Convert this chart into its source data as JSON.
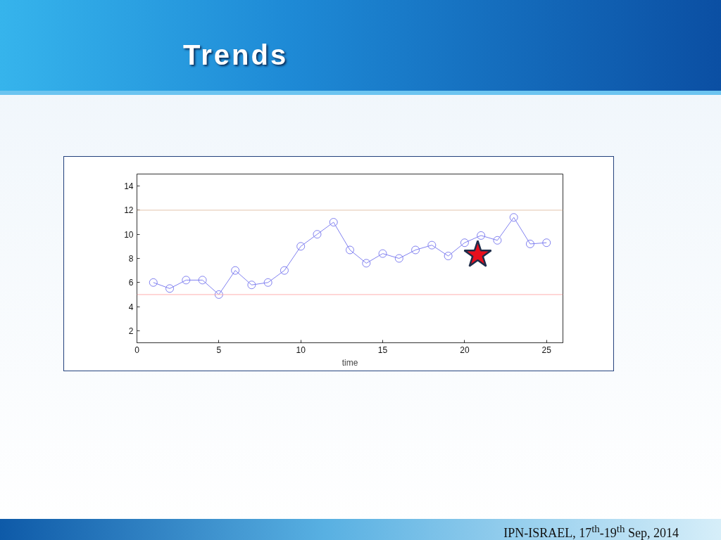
{
  "chart_data": {
    "type": "line",
    "title": "Trends",
    "xlabel": "time",
    "x": [
      1,
      2,
      3,
      4,
      5,
      6,
      7,
      8,
      9,
      10,
      11,
      12,
      13,
      14,
      15,
      16,
      17,
      18,
      19,
      20,
      21,
      22,
      23,
      24,
      25
    ],
    "xlim": [
      0,
      26
    ],
    "xticks": [
      0,
      5,
      10,
      15,
      20,
      25
    ],
    "ylim": [
      1,
      15
    ],
    "yticks": [
      2,
      4,
      6,
      8,
      10,
      12,
      14
    ],
    "grid": false,
    "marker": "circle",
    "line_style": "solid",
    "series": [
      {
        "color": "#8080f0",
        "values": [
          6.0,
          5.5,
          6.2,
          6.2,
          5.0,
          7.0,
          5.8,
          6.0,
          7.0,
          9.0,
          10.0,
          11.0,
          8.7,
          7.6,
          8.4,
          8.0,
          8.7,
          9.1,
          8.2,
          9.3,
          9.9,
          9.5,
          11.4,
          9.2,
          9.3
        ]
      },
      {
        "type": "scatter",
        "marker": "star",
        "color": "#e8101e",
        "x": [
          20.8
        ],
        "values": [
          8.3
        ]
      }
    ],
    "ref_lines": [
      {
        "axis": "y",
        "value": 12,
        "color": "#e2c4ac"
      },
      {
        "axis": "y",
        "value": 5,
        "color": "#ffb0b0"
      }
    ],
    "annotations": [
      "IPN-ISRAEL, 17$^{th}$-19$^{th}$ Sep, 2014"
    ]
  }
}
